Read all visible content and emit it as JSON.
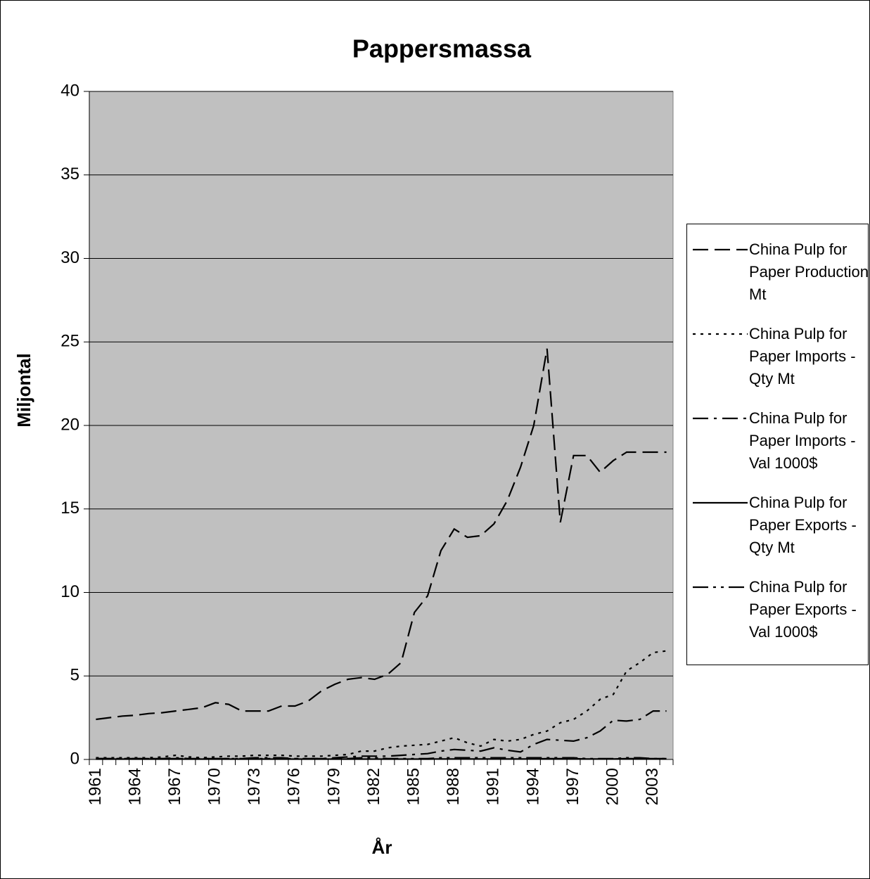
{
  "chart_data": {
    "type": "line",
    "title": "Pappersmassa",
    "x_label": "År",
    "y_label": "Miljontal",
    "categories": [
      "1961",
      null,
      null,
      "1964",
      null,
      null,
      "1967",
      null,
      null,
      "1970",
      null,
      null,
      "1973",
      null,
      null,
      "1976",
      null,
      null,
      "1979",
      null,
      null,
      "1982",
      null,
      null,
      "1985",
      null,
      null,
      "1988",
      null,
      null,
      "1991",
      null,
      null,
      "1994",
      null,
      null,
      "1997",
      null,
      null,
      "2000",
      null,
      null,
      "2003",
      null
    ],
    "ylim": [
      0,
      40
    ],
    "yticks": [
      0,
      5,
      10,
      15,
      20,
      25,
      30,
      35,
      40
    ],
    "grid": true,
    "legend": "right",
    "series": [
      {
        "name": "China Pulp for Paper Production Mt",
        "color": "#000000",
        "dash": "dashed",
        "values": [
          2.4,
          2.5,
          2.6,
          2.65,
          2.75,
          2.8,
          2.9,
          3.0,
          3.1,
          3.4,
          3.3,
          2.9,
          2.9,
          2.9,
          3.2,
          3.2,
          3.5,
          4.1,
          4.5,
          4.8,
          4.9,
          4.8,
          5.1,
          5.8,
          8.8,
          9.8,
          12.5,
          13.8,
          13.3,
          13.4,
          14.1,
          15.5,
          17.5,
          20.0,
          24.6,
          14.2,
          18.2,
          18.2,
          17.2,
          17.9,
          18.4,
          18.4,
          18.4,
          18.4
        ]
      },
      {
        "name": "China Pulp for Paper Imports - Qty Mt",
        "color": "#000000",
        "dash": "dotted",
        "values": [
          0.1,
          0.1,
          0.1,
          0.1,
          0.1,
          0.15,
          0.25,
          0.15,
          0.1,
          0.15,
          0.2,
          0.2,
          0.25,
          0.25,
          0.25,
          0.2,
          0.2,
          0.2,
          0.25,
          0.3,
          0.5,
          0.5,
          0.7,
          0.8,
          0.85,
          0.9,
          1.1,
          1.3,
          1.0,
          0.8,
          1.2,
          1.1,
          1.2,
          1.5,
          1.7,
          2.2,
          2.4,
          2.9,
          3.6,
          3.9,
          5.3,
          5.8,
          6.4,
          6.5
        ]
      },
      {
        "name": "China Pulp for Paper Imports - Val 1000$",
        "color": "#000000",
        "dash": "dashdot",
        "values": [
          0.05,
          0.05,
          0.05,
          0.05,
          0.05,
          0.05,
          0.1,
          0.05,
          0.05,
          0.05,
          0.05,
          0.05,
          0.1,
          0.1,
          0.1,
          0.05,
          0.05,
          0.05,
          0.1,
          0.15,
          0.2,
          0.2,
          0.2,
          0.25,
          0.3,
          0.35,
          0.5,
          0.6,
          0.55,
          0.5,
          0.7,
          0.55,
          0.45,
          0.9,
          1.2,
          1.15,
          1.1,
          1.3,
          1.7,
          2.35,
          2.3,
          2.4,
          2.9,
          2.9
        ]
      },
      {
        "name": "China Pulp for Paper Exports - Qty Mt",
        "color": "#000000",
        "dash": "solid",
        "values": [
          0.02,
          0.02,
          0.02,
          0.02,
          0.02,
          0.02,
          0.02,
          0.02,
          0.02,
          0.02,
          0.02,
          0.02,
          0.02,
          0.02,
          0.02,
          0.02,
          0.02,
          0.02,
          0.02,
          0.02,
          0.02,
          0.02,
          0.02,
          0.02,
          0.02,
          0.02,
          0.03,
          0.03,
          0.03,
          0.03,
          0.03,
          0.03,
          0.03,
          0.03,
          0.05,
          0.05,
          0.05,
          0.03,
          0.03,
          0.03,
          0.05,
          0.05,
          0.05,
          0.05
        ]
      },
      {
        "name": "China Pulp for Paper Exports - Val 1000$",
        "color": "#000000",
        "dash": "dashdotdot",
        "values": [
          0.05,
          0.05,
          0.05,
          0.05,
          0.05,
          0.05,
          0.05,
          0.05,
          0.05,
          0.05,
          0.05,
          0.05,
          0.05,
          0.05,
          0.05,
          0.05,
          0.05,
          0.05,
          0.05,
          0.05,
          0.1,
          0.1,
          0.05,
          0.05,
          0.05,
          0.05,
          0.1,
          0.1,
          0.1,
          0.1,
          0.1,
          0.1,
          0.1,
          0.1,
          0.1,
          0.1,
          0.1,
          0.05,
          0.05,
          0.05,
          0.1,
          0.1,
          0.05,
          0.05
        ]
      }
    ]
  }
}
